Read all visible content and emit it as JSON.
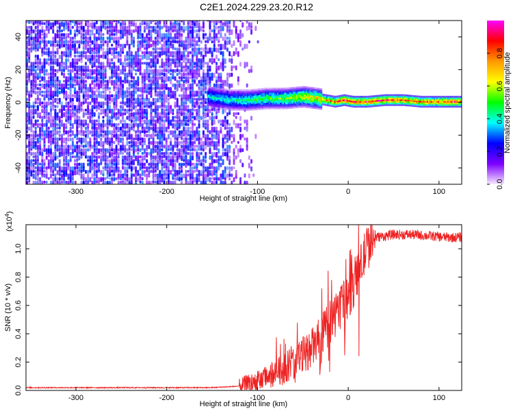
{
  "title": "C2E1.2024.229.23.20.R12",
  "chart_data": [
    {
      "type": "heatmap",
      "xlabel": "Height of straight line (km)",
      "ylabel": "Frequency (Hz)",
      "xlim": [
        -355,
        125
      ],
      "ylim": [
        -50,
        50
      ],
      "x_ticks": [
        -300,
        -200,
        -100,
        0,
        100
      ],
      "y_ticks": [
        -40,
        -20,
        0,
        20,
        40
      ],
      "colorbar": {
        "label": "Normalized spectral amplitude",
        "range": [
          0,
          1
        ],
        "ticks": [
          0.0,
          0.2,
          0.4,
          0.6,
          0.8
        ],
        "tick_labels": [
          "0.0",
          "0.2",
          "0.4",
          "0.6",
          "0.8"
        ],
        "colors": [
          "#f6e9ff",
          "#7d00ff",
          "#0000ff",
          "#00ffff",
          "#00ff00",
          "#ffff00",
          "#ff9900",
          "#ff0000",
          "#ff00ff"
        ]
      },
      "noise_region": {
        "x": [
          -355,
          -120
        ],
        "level": 0.15
      },
      "signal_track": {
        "x": [
          -155,
          -130,
          -110,
          -90,
          -70,
          -50,
          -35,
          -25,
          -15,
          -5,
          5,
          20,
          40,
          60,
          80,
          95,
          110,
          125
        ],
        "y": [
          3,
          1,
          1,
          2,
          2,
          3,
          2,
          1,
          0,
          1,
          0,
          0,
          1,
          1,
          0,
          0,
          0,
          0
        ],
        "amplitude": [
          0.4,
          0.45,
          0.5,
          0.55,
          0.6,
          0.7,
          0.75,
          0.8,
          0.85,
          0.9,
          0.9,
          0.92,
          0.9,
          0.88,
          0.9,
          0.85,
          0.9,
          0.9
        ]
      }
    },
    {
      "type": "line",
      "xlabel": "Height of straight line (km)",
      "ylabel": "SNR (10 * v/v)",
      "y_multiplier": "(x10",
      "y_multiplier_exp": "4",
      "y_multiplier_close": ")",
      "xlim": [
        -355,
        125
      ],
      "ylim": [
        0,
        1.17
      ],
      "x_ticks": [
        -300,
        -200,
        -100,
        0,
        100
      ],
      "y_ticks": [
        0.0,
        0.2,
        0.4,
        0.6,
        0.8,
        1.0
      ],
      "y_tick_labels": [
        "0.0",
        "0.2",
        "0.4",
        "0.6",
        "0.8",
        "1.0"
      ],
      "series": [
        {
          "color": "#ee2222",
          "x": [
            -355,
            -300,
            -250,
            -200,
            -150,
            -120,
            -100,
            -80,
            -60,
            -40,
            -30,
            -20,
            -10,
            0,
            10,
            20,
            30,
            50,
            70,
            90,
            110,
            125
          ],
          "y": [
            0.02,
            0.02,
            0.02,
            0.02,
            0.02,
            0.03,
            0.06,
            0.12,
            0.2,
            0.3,
            0.38,
            0.48,
            0.58,
            0.66,
            0.8,
            1.0,
            1.08,
            1.1,
            1.1,
            1.09,
            1.08,
            1.08
          ]
        }
      ]
    }
  ]
}
